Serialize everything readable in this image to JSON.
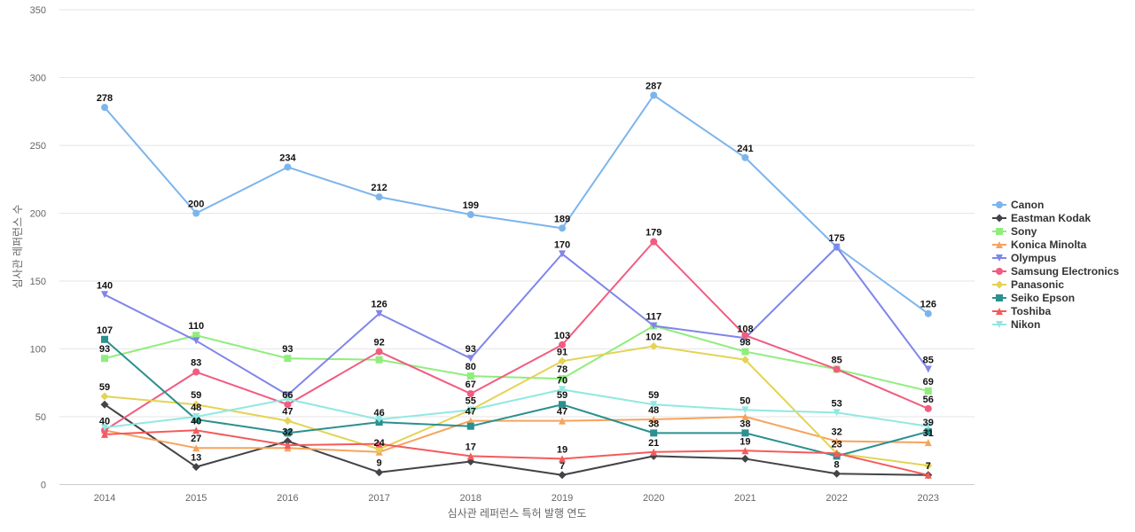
{
  "chart_data": {
    "type": "line",
    "x": [
      "2014",
      "2015",
      "2016",
      "2017",
      "2018",
      "2019",
      "2020",
      "2021",
      "2022",
      "2023"
    ],
    "xlabel": "심사관 레퍼런스 특허 발행 연도",
    "ylabel": "심사관 레퍼런스 수",
    "ylim": [
      0,
      350
    ],
    "yticks": [
      0,
      50,
      100,
      150,
      200,
      250,
      300,
      350
    ],
    "grid": true,
    "legend_position": "right",
    "series": [
      {
        "name": "Canon",
        "color": "#7cb5ec",
        "marker": "circle",
        "values": [
          278,
          200,
          234,
          212,
          199,
          189,
          287,
          241,
          175,
          126
        ]
      },
      {
        "name": "Eastman Kodak",
        "color": "#434348",
        "marker": "diamond",
        "values": [
          59,
          13,
          32,
          9,
          17,
          7,
          21,
          19,
          8,
          7
        ]
      },
      {
        "name": "Sony",
        "color": "#90ed7d",
        "marker": "square",
        "values": [
          93,
          110,
          93,
          92,
          80,
          78,
          117,
          98,
          85,
          69
        ]
      },
      {
        "name": "Konica Minolta",
        "color": "#f7a35c",
        "marker": "triangle",
        "values": [
          40,
          27,
          27,
          24,
          47,
          47,
          48,
          50,
          32,
          31
        ]
      },
      {
        "name": "Olympus",
        "color": "#8085e9",
        "marker": "triangle-down",
        "values": [
          140,
          106,
          66,
          126,
          93,
          170,
          117,
          108,
          175,
          85
        ]
      },
      {
        "name": "Samsung Electronics",
        "color": "#f15c80",
        "marker": "circle",
        "values": [
          40,
          83,
          59,
          98,
          67,
          103,
          179,
          110,
          85,
          56
        ]
      },
      {
        "name": "Panasonic",
        "color": "#e4d354",
        "marker": "diamond",
        "values": [
          65,
          59,
          47,
          26,
          55,
          91,
          102,
          92,
          23,
          14
        ]
      },
      {
        "name": "Seiko Epson",
        "color": "#2b908f",
        "marker": "square",
        "values": [
          107,
          48,
          38,
          46,
          43,
          59,
          38,
          38,
          21,
          39
        ]
      },
      {
        "name": "Toshiba",
        "color": "#f45b5b",
        "marker": "triangle",
        "values": [
          37,
          40,
          29,
          30,
          21,
          19,
          24,
          25,
          23,
          7
        ]
      },
      {
        "name": "Nikon",
        "color": "#91e8e1",
        "marker": "triangle-down",
        "values": [
          42,
          50,
          63,
          48,
          55,
          70,
          59,
          55,
          53,
          43
        ]
      }
    ],
    "data_labels": [
      {
        "series": "Canon",
        "index": 0,
        "text": "278"
      },
      {
        "series": "Canon",
        "index": 1,
        "text": "200"
      },
      {
        "series": "Canon",
        "index": 2,
        "text": "234"
      },
      {
        "series": "Canon",
        "index": 3,
        "text": "212"
      },
      {
        "series": "Canon",
        "index": 4,
        "text": "199"
      },
      {
        "series": "Canon",
        "index": 5,
        "text": "189"
      },
      {
        "series": "Canon",
        "index": 6,
        "text": "287"
      },
      {
        "series": "Canon",
        "index": 7,
        "text": "241"
      },
      {
        "series": "Canon",
        "index": 8,
        "text": "175"
      },
      {
        "series": "Canon",
        "index": 9,
        "text": "126"
      },
      {
        "series": "Olympus",
        "index": 0,
        "text": "140"
      },
      {
        "series": "Olympus",
        "index": 3,
        "text": "126"
      },
      {
        "series": "Olympus",
        "index": 4,
        "text": "93"
      },
      {
        "series": "Olympus",
        "index": 5,
        "text": "170"
      },
      {
        "series": "Olympus",
        "index": 6,
        "text": "117"
      },
      {
        "series": "Olympus",
        "index": 7,
        "text": "108"
      },
      {
        "series": "Olympus",
        "index": 9,
        "text": "85"
      },
      {
        "series": "Sony",
        "index": 0,
        "text": "93"
      },
      {
        "series": "Sony",
        "index": 1,
        "text": "110"
      },
      {
        "series": "Sony",
        "index": 2,
        "text": "93"
      },
      {
        "series": "Sony",
        "index": 4,
        "text": "80"
      },
      {
        "series": "Sony",
        "index": 5,
        "text": "78"
      },
      {
        "series": "Sony",
        "index": 7,
        "text": "98"
      },
      {
        "series": "Sony",
        "index": 9,
        "text": "69"
      },
      {
        "series": "Samsung Electronics",
        "index": 1,
        "text": "83"
      },
      {
        "series": "Samsung Electronics",
        "index": 2,
        "text": "66"
      },
      {
        "series": "Samsung Electronics",
        "index": 3,
        "text": "92"
      },
      {
        "series": "Samsung Electronics",
        "index": 4,
        "text": "67"
      },
      {
        "series": "Samsung Electronics",
        "index": 5,
        "text": "103"
      },
      {
        "series": "Samsung Electronics",
        "index": 6,
        "text": "179"
      },
      {
        "series": "Samsung Electronics",
        "index": 8,
        "text": "85"
      },
      {
        "series": "Samsung Electronics",
        "index": 9,
        "text": "56"
      },
      {
        "series": "Seiko Epson",
        "index": 0,
        "text": "107"
      },
      {
        "series": "Seiko Epson",
        "index": 3,
        "text": "46"
      },
      {
        "series": "Seiko Epson",
        "index": 5,
        "text": "59"
      },
      {
        "series": "Seiko Epson",
        "index": 6,
        "text": "38"
      },
      {
        "series": "Seiko Epson",
        "index": 7,
        "text": "38"
      },
      {
        "series": "Seiko Epson",
        "index": 9,
        "text": "39"
      },
      {
        "series": "Panasonic",
        "index": 0,
        "text": "59"
      },
      {
        "series": "Panasonic",
        "index": 1,
        "text": "59"
      },
      {
        "series": "Panasonic",
        "index": 2,
        "text": "47"
      },
      {
        "series": "Panasonic",
        "index": 4,
        "text": "55"
      },
      {
        "series": "Panasonic",
        "index": 5,
        "text": "91"
      },
      {
        "series": "Panasonic",
        "index": 6,
        "text": "102"
      },
      {
        "series": "Panasonic",
        "index": 8,
        "text": "23"
      },
      {
        "series": "Nikon",
        "index": 1,
        "text": "48"
      },
      {
        "series": "Nikon",
        "index": 5,
        "text": "70"
      },
      {
        "series": "Nikon",
        "index": 6,
        "text": "59"
      },
      {
        "series": "Nikon",
        "index": 7,
        "text": "50"
      },
      {
        "series": "Nikon",
        "index": 8,
        "text": "53"
      },
      {
        "series": "Konica Minolta",
        "index": 0,
        "text": "40"
      },
      {
        "series": "Konica Minolta",
        "index": 1,
        "text": "27"
      },
      {
        "series": "Konica Minolta",
        "index": 3,
        "text": "24"
      },
      {
        "series": "Konica Minolta",
        "index": 4,
        "text": "47"
      },
      {
        "series": "Konica Minolta",
        "index": 5,
        "text": "47"
      },
      {
        "series": "Konica Minolta",
        "index": 6,
        "text": "48"
      },
      {
        "series": "Konica Minolta",
        "index": 8,
        "text": "32"
      },
      {
        "series": "Konica Minolta",
        "index": 9,
        "text": "31"
      },
      {
        "series": "Toshiba",
        "index": 1,
        "text": "40"
      },
      {
        "series": "Toshiba",
        "index": 4,
        "text": "17"
      },
      {
        "series": "Toshiba",
        "index": 5,
        "text": "19"
      },
      {
        "series": "Toshiba",
        "index": 6,
        "text": "21"
      },
      {
        "series": "Toshiba",
        "index": 7,
        "text": "19"
      },
      {
        "series": "Eastman Kodak",
        "index": 1,
        "text": "13"
      },
      {
        "series": "Eastman Kodak",
        "index": 2,
        "text": "32"
      },
      {
        "series": "Eastman Kodak",
        "index": 3,
        "text": "9"
      },
      {
        "series": "Eastman Kodak",
        "index": 5,
        "text": "7"
      },
      {
        "series": "Eastman Kodak",
        "index": 8,
        "text": "8"
      },
      {
        "series": "Eastman Kodak",
        "index": 9,
        "text": "7"
      }
    ]
  }
}
